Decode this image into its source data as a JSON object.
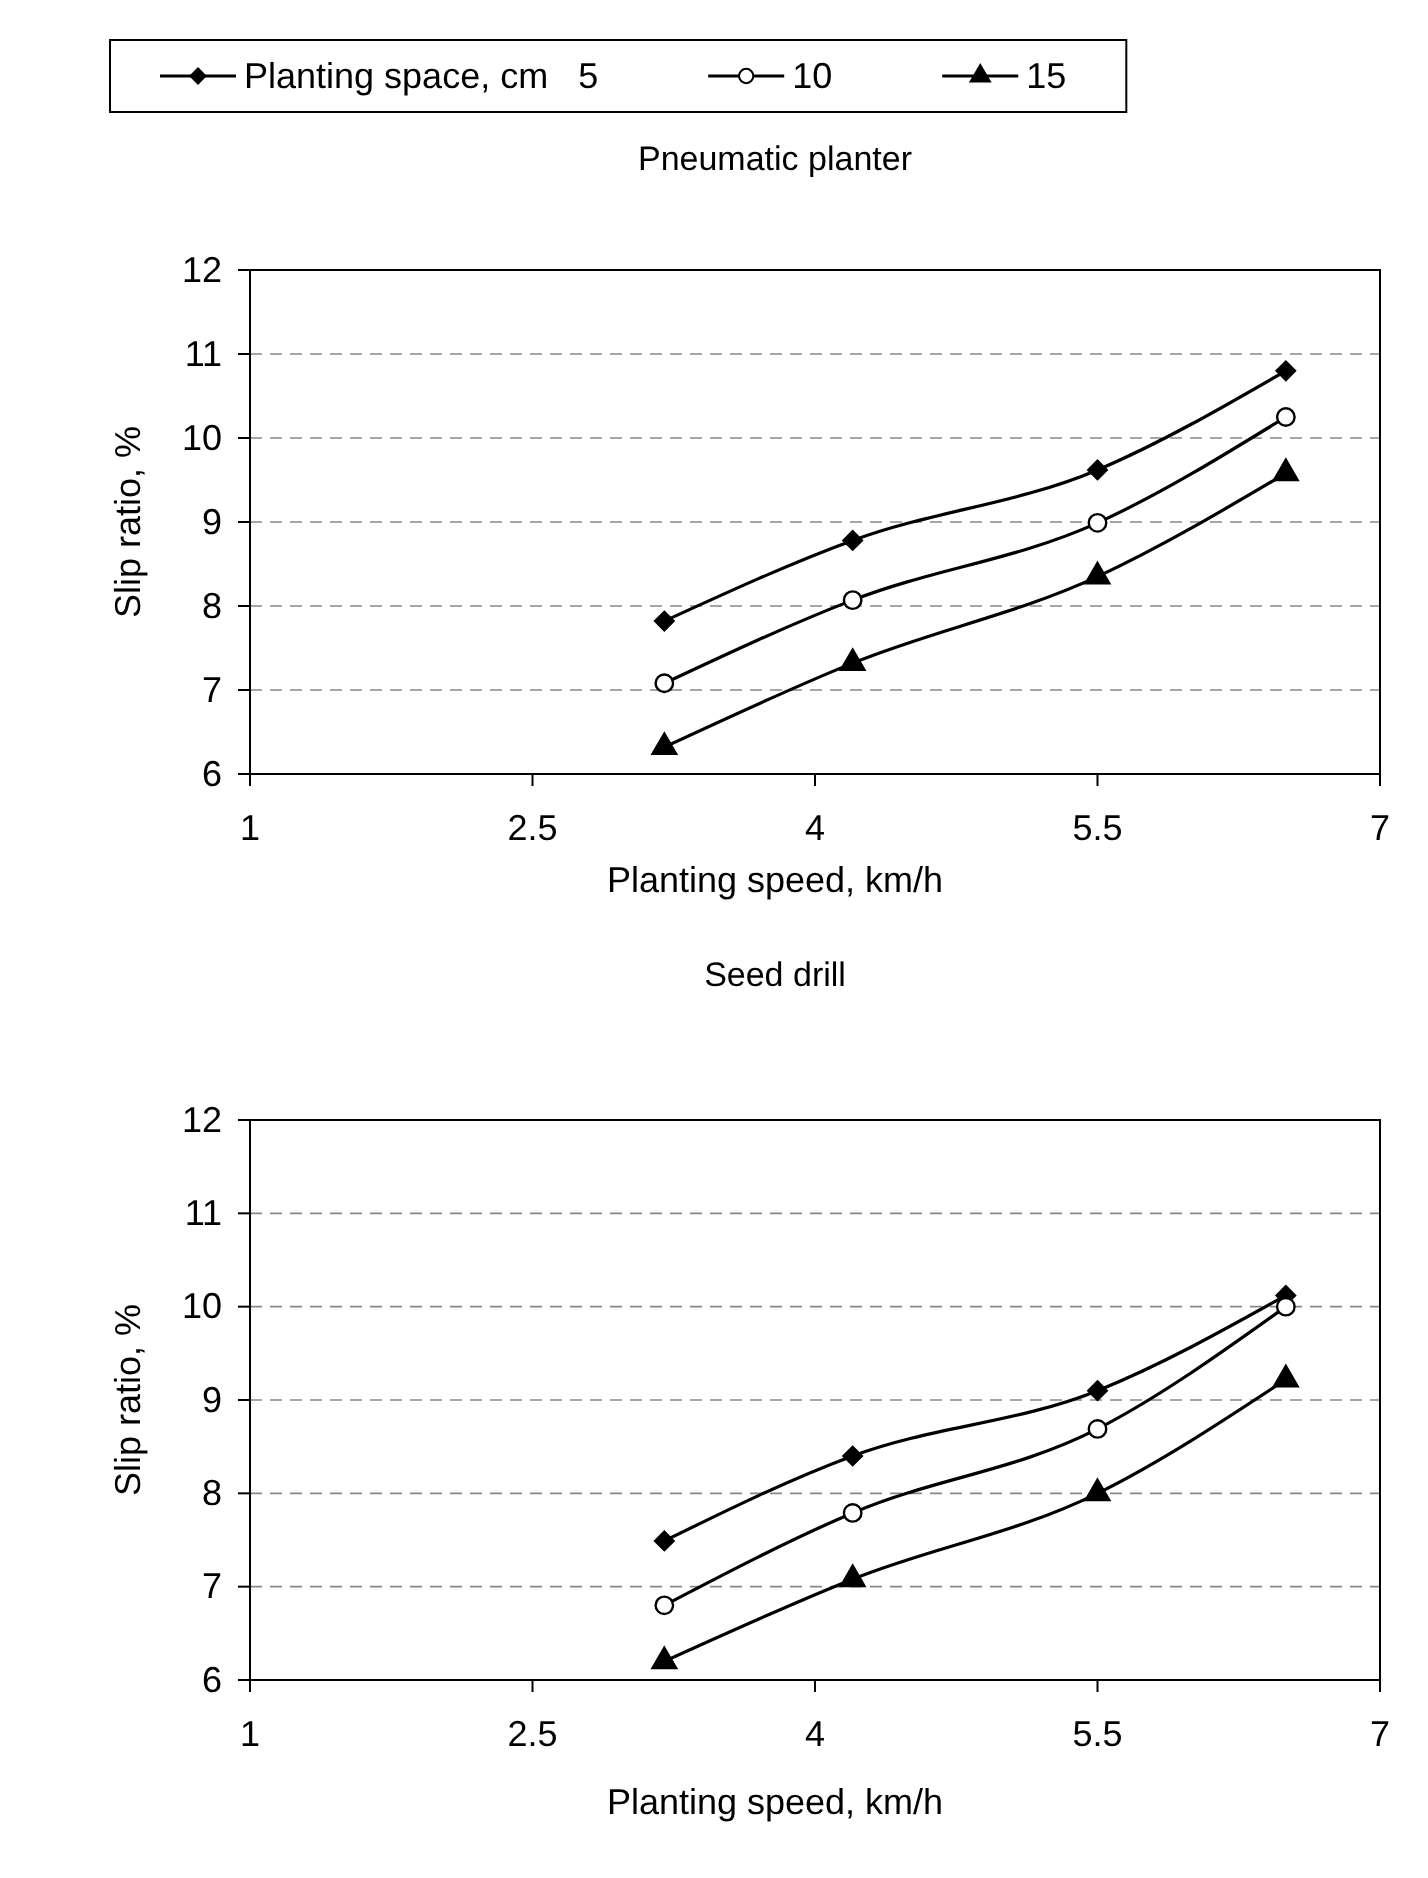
{
  "chart_data": [
    {
      "type": "line",
      "title": "Pneumatic planter",
      "xlabel": "Planting speed, km/h",
      "ylabel": "Slip ratio, %",
      "legend": "top",
      "grid": "y",
      "xlim": [
        1,
        7
      ],
      "xticks": [
        1,
        2.5,
        4,
        5.5,
        7
      ],
      "ylim": [
        6,
        12
      ],
      "yticks": [
        6,
        7,
        8,
        9,
        10,
        11,
        12
      ],
      "x": [
        3.2,
        4.2,
        5.5,
        6.5
      ],
      "series": [
        {
          "name": "Planting space, cm   5",
          "color": "#000000",
          "marker": "diamond",
          "values": [
            7.82,
            8.78,
            9.62,
            10.8
          ]
        },
        {
          "name": "10",
          "color": "#000000",
          "marker": "circle",
          "values": [
            7.08,
            8.07,
            8.99,
            10.25
          ]
        },
        {
          "name": "15",
          "color": "#000000",
          "marker": "triangle",
          "values": [
            6.32,
            7.32,
            8.35,
            9.58
          ]
        }
      ]
    },
    {
      "type": "line",
      "title": "Seed drill",
      "xlabel": "Planting speed, km/h",
      "ylabel": "Slip ratio, %",
      "grid": "y",
      "xlim": [
        1,
        7
      ],
      "xticks": [
        1,
        2.5,
        4,
        5.5,
        7
      ],
      "ylim": [
        6,
        12
      ],
      "yticks": [
        6,
        7,
        8,
        9,
        10,
        11,
        12
      ],
      "x": [
        3.2,
        4.2,
        5.5,
        6.5
      ],
      "series": [
        {
          "color": "#000000",
          "marker": "diamond",
          "values": [
            7.49,
            8.4,
            9.1,
            10.12
          ]
        },
        {
          "color": "#000000",
          "marker": "circle",
          "values": [
            6.8,
            7.79,
            8.69,
            10.0
          ]
        },
        {
          "color": "#000000",
          "marker": "triangle",
          "values": [
            6.2,
            7.08,
            8.0,
            9.22
          ]
        }
      ]
    }
  ]
}
